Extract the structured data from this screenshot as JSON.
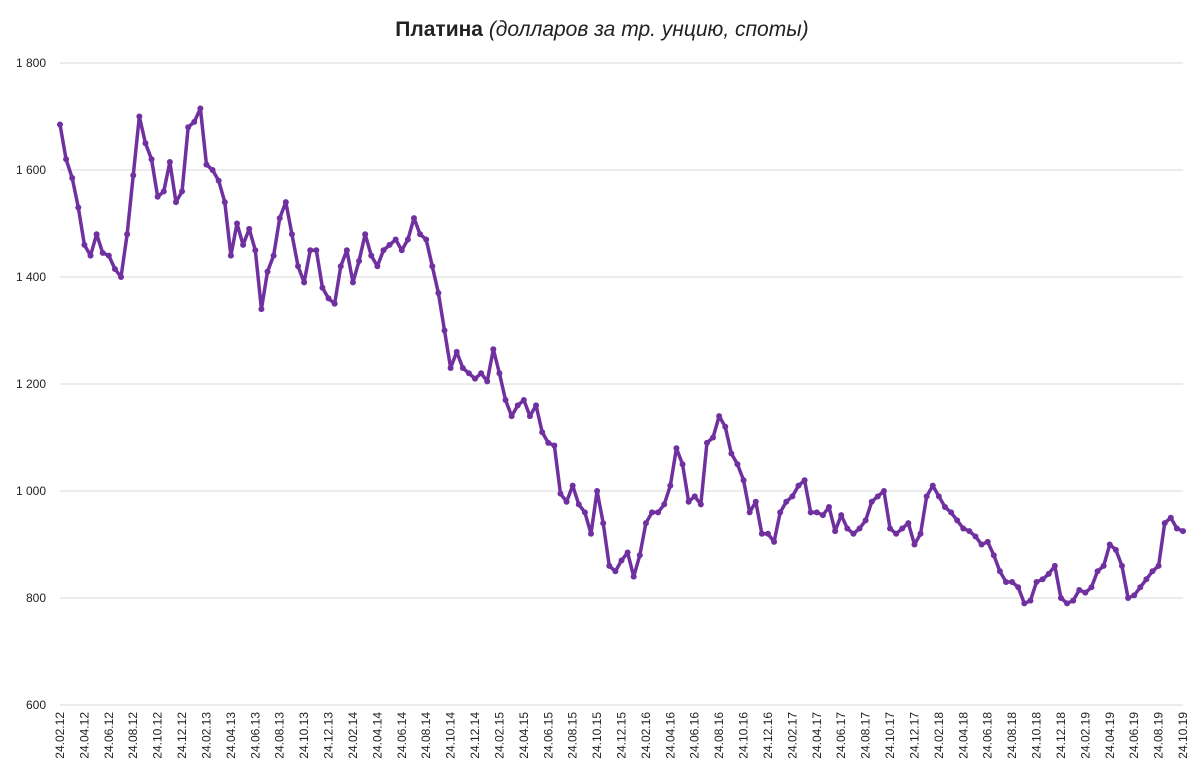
{
  "chart_data": {
    "type": "line",
    "title": "Платина",
    "subtitle": "(долларов за тр. унцию, споты)",
    "color": "#7030a0",
    "grid": true,
    "ylim": [
      600,
      1800
    ],
    "yticks": [
      600,
      800,
      {
        "value": 1000,
        "label": "1 000"
      },
      {
        "value": 1200,
        "label": "1 200"
      },
      {
        "value": 1400,
        "label": "1 400"
      },
      {
        "value": 1600,
        "label": "1 600"
      },
      {
        "value": 1800,
        "label": "1 800"
      }
    ],
    "categories": [
      "24.02.12",
      null,
      null,
      null,
      "24.04.12",
      null,
      null,
      null,
      "24.06.12",
      null,
      null,
      null,
      "24.08.12",
      null,
      null,
      null,
      "24.10.12",
      null,
      null,
      null,
      "24.12.12",
      null,
      null,
      null,
      "24.02.13",
      null,
      null,
      null,
      "24.04.13",
      null,
      null,
      null,
      "24.06.13",
      null,
      null,
      null,
      "24.08.13",
      null,
      null,
      null,
      "24.10.13",
      null,
      null,
      null,
      "24.12.13",
      null,
      null,
      null,
      "24.02.14",
      null,
      null,
      null,
      "24.04.14",
      null,
      null,
      null,
      "24.06.14",
      null,
      null,
      null,
      "24.08.14",
      null,
      null,
      null,
      "24.10.14",
      null,
      null,
      null,
      "24.12.14",
      null,
      null,
      null,
      "24.02.15",
      null,
      null,
      null,
      "24.04.15",
      null,
      null,
      null,
      "24.06.15",
      null,
      null,
      null,
      "24.08.15",
      null,
      null,
      null,
      "24.10.15",
      null,
      null,
      null,
      "24.12.15",
      null,
      null,
      null,
      "24.02.16",
      null,
      null,
      null,
      "24.04.16",
      null,
      null,
      null,
      "24.06.16",
      null,
      null,
      null,
      "24.08.16",
      null,
      null,
      null,
      "24.10.16",
      null,
      null,
      null,
      "24.12.16",
      null,
      null,
      null,
      "24.02.17",
      null,
      null,
      null,
      "24.04.17",
      null,
      null,
      null,
      "24.06.17",
      null,
      null,
      null,
      "24.08.17",
      null,
      null,
      null,
      "24.10.17",
      null,
      null,
      null,
      "24.12.17",
      null,
      null,
      null,
      "24.02.18",
      null,
      null,
      null,
      "24.04.18",
      null,
      null,
      null,
      "24.06.18",
      null,
      null,
      null,
      "24.08.18",
      null,
      null,
      null,
      "24.10.18",
      null,
      null,
      null,
      "24.12.18",
      null,
      null,
      null,
      "24.02.19",
      null,
      null,
      null,
      "24.04.19",
      null,
      null,
      null,
      "24.06.19",
      null,
      null,
      null,
      "24.08.19",
      null,
      null,
      null,
      "24.10.19"
    ],
    "values": [
      1685,
      1620,
      1585,
      1530,
      1460,
      1440,
      1480,
      1445,
      1440,
      1415,
      1400,
      1480,
      1590,
      1700,
      1650,
      1620,
      1550,
      1560,
      1615,
      1540,
      1560,
      1680,
      1690,
      1715,
      1610,
      1600,
      1580,
      1540,
      1440,
      1500,
      1460,
      1490,
      1450,
      1340,
      1410,
      1440,
      1510,
      1540,
      1480,
      1420,
      1390,
      1450,
      1450,
      1380,
      1360,
      1350,
      1420,
      1450,
      1390,
      1430,
      1480,
      1440,
      1420,
      1450,
      1460,
      1470,
      1450,
      1470,
      1510,
      1480,
      1470,
      1420,
      1370,
      1300,
      1230,
      1260,
      1230,
      1220,
      1210,
      1220,
      1205,
      1265,
      1220,
      1170,
      1140,
      1160,
      1170,
      1140,
      1160,
      1110,
      1090,
      1085,
      995,
      980,
      1010,
      975,
      960,
      920,
      1000,
      940,
      860,
      850,
      870,
      885,
      840,
      880,
      940,
      960,
      960,
      975,
      1010,
      1080,
      1050,
      980,
      990,
      975,
      1090,
      1100,
      1140,
      1120,
      1070,
      1050,
      1020,
      960,
      980,
      920,
      920,
      905,
      960,
      980,
      990,
      1010,
      1020,
      960,
      960,
      955,
      970,
      925,
      955,
      930,
      920,
      930,
      945,
      980,
      990,
      1000,
      930,
      920,
      930,
      940,
      900,
      920,
      990,
      1010,
      990,
      970,
      960,
      945,
      930,
      925,
      915,
      900,
      905,
      880,
      850,
      830,
      830,
      820,
      790,
      795,
      830,
      835,
      845,
      860,
      800,
      790,
      795,
      815,
      810,
      820,
      850,
      860,
      900,
      890,
      860,
      800,
      805,
      820,
      835,
      850,
      860,
      940,
      950,
      930,
      925
    ]
  }
}
